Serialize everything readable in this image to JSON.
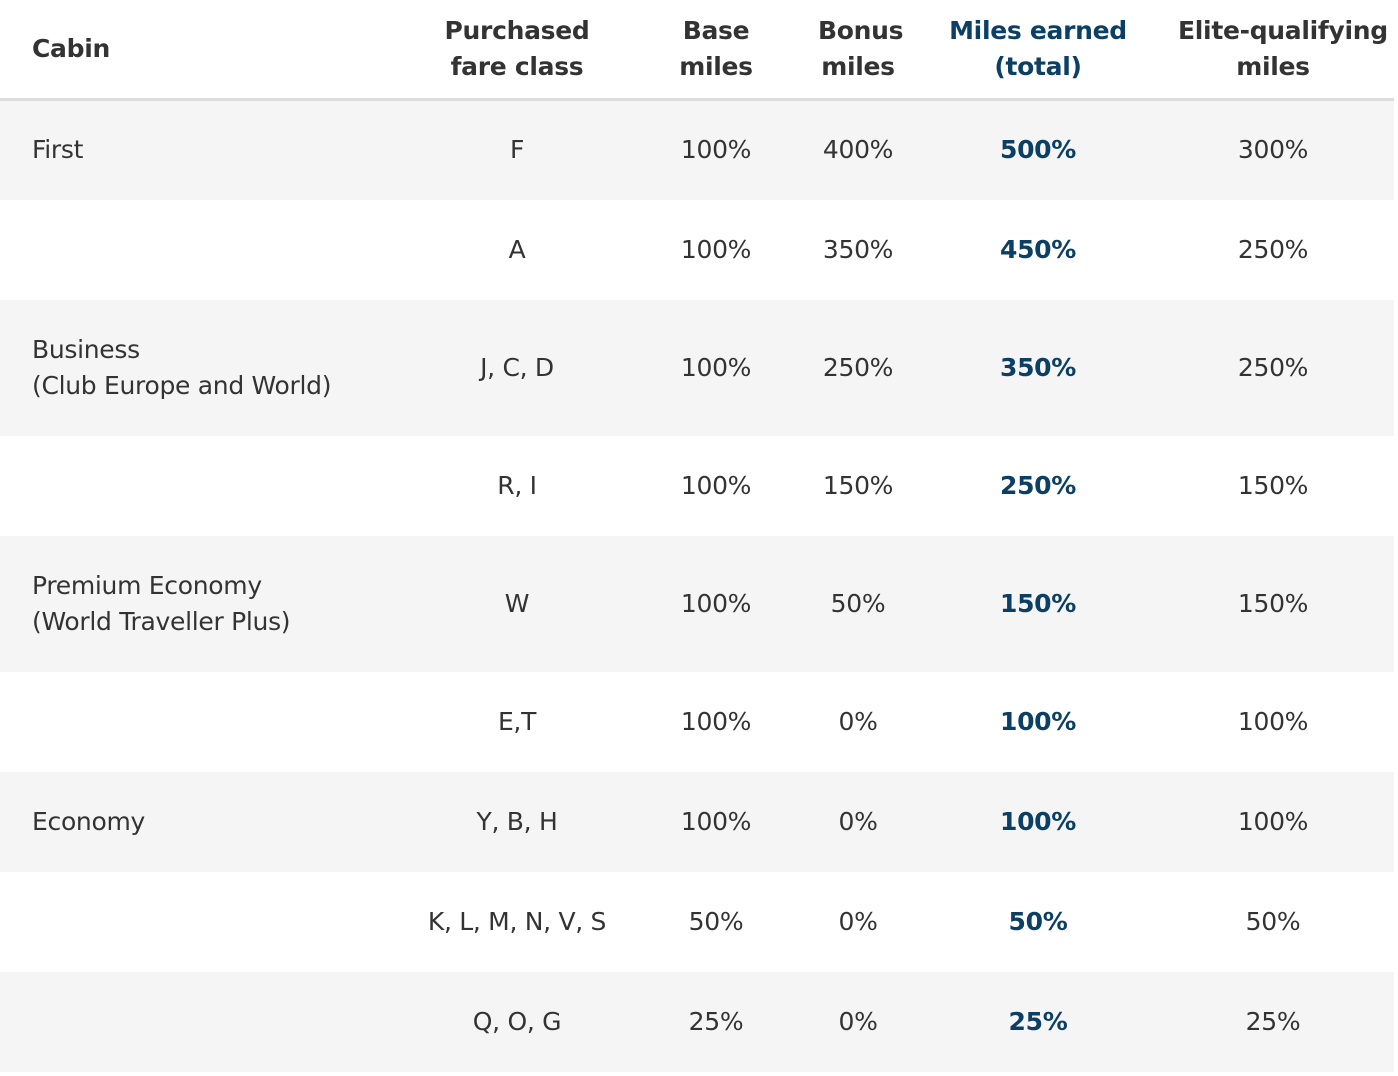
{
  "table": {
    "header": [
      [
        "Cabin"
      ],
      [
        "Purchased",
        "fare class"
      ],
      [
        "Base",
        "miles"
      ],
      [
        "Bonus",
        "miles"
      ],
      [
        "Miles earned",
        "(total)"
      ],
      [
        "Elite-qualifying",
        "miles"
      ]
    ],
    "rows": [
      [
        [
          "First"
        ],
        "F",
        "100%",
        "400%",
        "500%",
        "300%"
      ],
      [
        null,
        "A",
        "100%",
        "350%",
        "450%",
        "250%"
      ],
      [
        [
          "Business",
          "(Club Europe and World)"
        ],
        "J, C, D",
        "100%",
        "250%",
        "350%",
        "250%"
      ],
      [
        null,
        "R, I",
        "100%",
        "150%",
        "250%",
        "150%"
      ],
      [
        [
          "Premium Economy",
          "(World Traveller Plus)"
        ],
        "W",
        "100%",
        "50%",
        "150%",
        "150%"
      ],
      [
        null,
        "E,T",
        "100%",
        "0%",
        "100%",
        "100%"
      ],
      [
        [
          "Economy"
        ],
        "Y, B, H",
        "100%",
        "0%",
        "100%",
        "100%"
      ],
      [
        null,
        "K, L, M, N, V, S",
        "50%",
        "0%",
        "50%",
        "50%"
      ],
      [
        null,
        "Q, O, G",
        "25%",
        "0%",
        "25%",
        "25%"
      ]
    ]
  }
}
